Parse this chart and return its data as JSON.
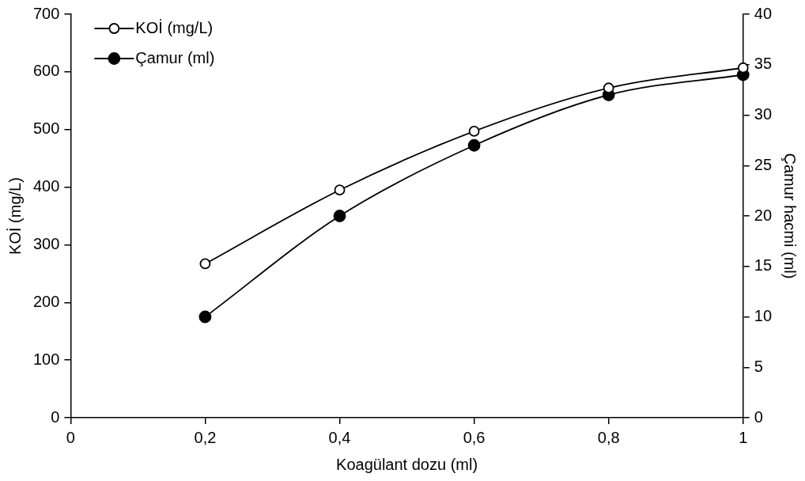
{
  "chart_data": {
    "type": "line",
    "xlabel": "Koagülant dozu (ml)",
    "ylabel": "KOİ (mg/L)",
    "y2label": "Çamur hacmi (ml)",
    "x": [
      0.2,
      0.4,
      0.6,
      0.8,
      1
    ],
    "series": [
      {
        "name": "KOİ (mg/L)",
        "color": "#000000",
        "marker": "circle",
        "values": [
          267,
          395,
          497,
          572,
          607
        ]
      },
      {
        "name": "Çamur (ml)",
        "color": "#000000",
        "marker": "circle",
        "axis": "y2",
        "values": [
          10,
          20,
          27,
          32,
          34
        ]
      }
    ],
    "xlim": [
      0,
      1
    ],
    "xticks": [
      {
        "value": 0,
        "label": "0"
      },
      {
        "value": 0.2,
        "label": "0,2"
      },
      {
        "value": 0.4,
        "label": "0,4"
      },
      {
        "value": 0.6,
        "label": "0,6"
      },
      {
        "value": 0.8,
        "label": "0,8"
      },
      {
        "value": 1,
        "label": "1"
      }
    ],
    "ylim": [
      0,
      700
    ],
    "yticks": [
      0,
      100,
      200,
      300,
      400,
      500,
      600,
      700
    ],
    "y2lim": [
      0,
      40
    ],
    "y2ticks": [
      0,
      5,
      10,
      15,
      20,
      25,
      30,
      35,
      40
    ],
    "grid": false,
    "legend": "top left",
    "line_style": "solid"
  }
}
